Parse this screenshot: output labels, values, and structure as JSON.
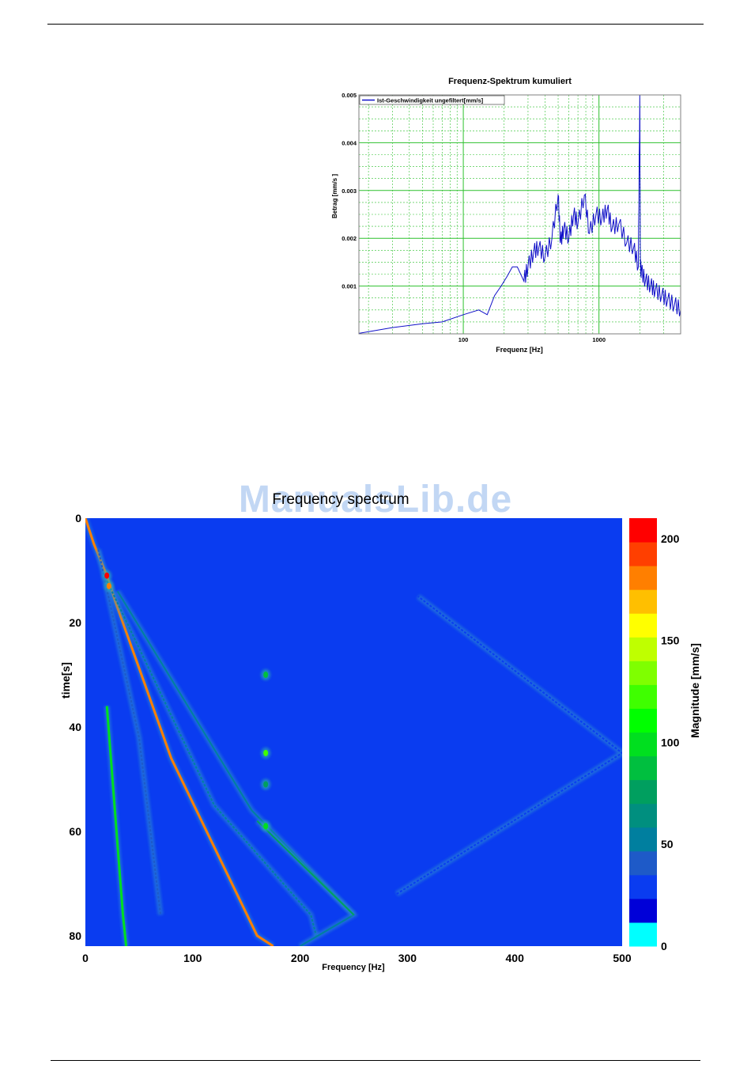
{
  "watermark": "ManualsLib.de",
  "chart_data": [
    {
      "type": "line",
      "title": "Frequenz-Spektrum kumuliert",
      "xlabel": "Frequenz [Hz]",
      "ylabel": "Betrag [mm/s ]",
      "xscale": "log",
      "xlim": [
        17,
        4000
      ],
      "ylim": [
        0,
        0.005
      ],
      "xticks": [
        "100",
        "1000"
      ],
      "yticks": [
        "0.001",
        "0.002",
        "0.003",
        "0.004",
        "0.005"
      ],
      "grid": true,
      "legend_position": "top-left",
      "colors": {
        "series": "#1010c8",
        "grid": "#2dc02d",
        "frame": "#7f7f7f"
      },
      "series": [
        {
          "name": "Ist-Geschwindigkeit ungefiltert[mm/s]",
          "x": [
            17,
            30,
            50,
            70,
            100,
            130,
            150,
            170,
            190,
            210,
            230,
            250,
            280,
            300,
            330,
            360,
            400,
            450,
            500,
            520,
            550,
            600,
            650,
            700,
            780,
            850,
            950,
            1050,
            1150,
            1250,
            1400,
            1600,
            1800,
            1950,
            2000,
            2020,
            2050,
            2200,
            2400,
            2600,
            2900,
            3200,
            3600,
            4000
          ],
          "y": [
            1e-05,
            0.00013,
            0.00021,
            0.00025,
            0.0004,
            0.0005,
            0.0004,
            0.0008,
            0.001,
            0.0012,
            0.0014,
            0.0014,
            0.0011,
            0.0014,
            0.0017,
            0.0018,
            0.0016,
            0.002,
            0.0029,
            0.0019,
            0.0022,
            0.002,
            0.0025,
            0.0023,
            0.0029,
            0.0021,
            0.0025,
            0.0024,
            0.0026,
            0.0022,
            0.0023,
            0.0019,
            0.0018,
            0.0014,
            0.005,
            0.0014,
            0.0013,
            0.0011,
            0.001,
            0.0009,
            0.0008,
            0.0007,
            0.0006,
            0.0005
          ]
        }
      ]
    },
    {
      "type": "heatmap",
      "title": "Frequency spectrum",
      "xlabel": "Frequency [Hz]",
      "ylabel": "time[s]",
      "colorbar_label": "Magnitude [mm/s]",
      "xlim": [
        0,
        500
      ],
      "ylim": [
        82,
        0
      ],
      "xticks": [
        0,
        100,
        200,
        300,
        400,
        500
      ],
      "yticks": [
        0,
        20,
        40,
        60,
        80
      ],
      "colorbar_ticks": [
        0,
        50,
        100,
        150,
        200
      ],
      "colorbar_range": [
        0,
        210
      ],
      "background_color": "#0a3cf0",
      "colormap": [
        "#00ffff",
        "#0000d8",
        "#0a3cf0",
        "#1e5ac8",
        "#007f9f",
        "#008f7f",
        "#009f5f",
        "#00bf3f",
        "#00df1f",
        "#00ff00",
        "#3fff00",
        "#7fff00",
        "#bfff00",
        "#ffff00",
        "#ffbf00",
        "#ff7f00",
        "#ff3f00",
        "#ff0000"
      ],
      "ridges": [
        {
          "points": [
            [
              0,
              0
            ],
            [
              8,
              5
            ],
            [
              20,
              11
            ],
            [
              28,
              16
            ],
            [
              80,
              46
            ],
            [
              160,
              80
            ],
            [
              175,
              82
            ]
          ],
          "peak": 190
        },
        {
          "points": [
            [
              20,
              36
            ],
            [
              35,
              76
            ],
            [
              38,
              82
            ]
          ],
          "peak": 95
        },
        {
          "points": [
            [
              12,
              6
            ],
            [
              50,
              42
            ],
            [
              70,
              76
            ]
          ],
          "peak": 40
        },
        {
          "points": [
            [
              20,
              12
            ],
            [
              120,
              55
            ],
            [
              210,
              76
            ],
            [
              215,
              80
            ]
          ],
          "peak": 45
        },
        {
          "points": [
            [
              30,
              14
            ],
            [
              155,
              56
            ],
            [
              250,
              76
            ],
            [
              200,
              82
            ]
          ],
          "peak": 55
        },
        {
          "points": [
            [
              160,
              58
            ],
            [
              250,
              76
            ]
          ],
          "peak": 70
        },
        {
          "points": [
            [
              290,
              72
            ],
            [
              500,
              45
            ],
            [
              310,
              15
            ]
          ],
          "peak": 22
        }
      ],
      "hotspots": [
        {
          "freq": 168,
          "time": 30,
          "value": 85
        },
        {
          "freq": 168,
          "time": 45,
          "value": 120
        },
        {
          "freq": 168,
          "time": 51,
          "value": 80
        },
        {
          "freq": 168,
          "time": 59,
          "value": 95
        },
        {
          "freq": 20,
          "time": 11,
          "value": 205
        },
        {
          "freq": 22,
          "time": 13,
          "value": 180
        }
      ]
    }
  ]
}
